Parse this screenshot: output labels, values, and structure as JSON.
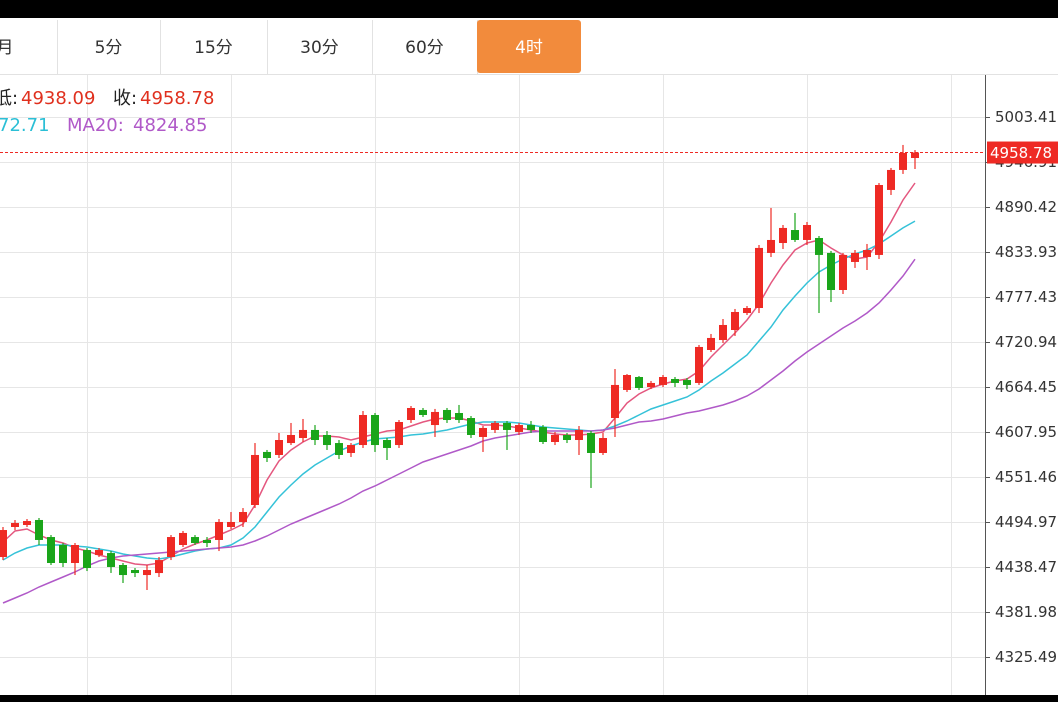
{
  "tabs": [
    "月",
    "5分",
    "15分",
    "30分",
    "60分",
    "4时"
  ],
  "active_tab": 5,
  "chart_data": {
    "type": "candlestick",
    "info": {
      "low_label": "低:",
      "close_label": "收:",
      "ma10_tail": "72.71",
      "ma20_label": "MA20:"
    },
    "up_color": "#ee2a24",
    "down_color": "#1aa51a",
    "ylim": [
      4277.8,
      5056.1
    ],
    "yticks": [
      4325.49,
      4381.98,
      4438.47,
      4494.97,
      4551.46,
      4607.95,
      4664.45,
      4720.94,
      4777.43,
      4833.93,
      4890.42,
      4946.91,
      5003.41
    ],
    "grid": true,
    "open": [
      4451.0,
      4488.7,
      4491.2,
      4497.5,
      4476.1,
      4466.1,
      4443.5,
      4459.8,
      4453.5,
      4456.0,
      4441.0,
      4434.7,
      4428.4,
      4430.9,
      4451.0,
      4466.1,
      4476.1,
      4472.4,
      4472.4,
      4488.7,
      4495.0,
      4516.3,
      4582.9,
      4579.1,
      4594.1,
      4600.4,
      4610.5,
      4604.2,
      4594.1,
      4581.6,
      4591.6,
      4629.3,
      4597.9,
      4591.6,
      4623.0,
      4635.6,
      4616.7,
      4635.6,
      4631.8,
      4625.5,
      4601.7,
      4610.5,
      4619.3,
      4608.0,
      4616.7,
      4614.2,
      4595.4,
      4604.2,
      4597.9,
      4606.7,
      4581.6,
      4625.5,
      4660.7,
      4677.0,
      4664.4,
      4667.0,
      4674.5,
      4673.2,
      4669.5,
      4710.9,
      4723.4,
      4736.0,
      4757.3,
      4763.6,
      4832.7,
      4845.2,
      4861.5,
      4849.0,
      4851.5,
      4832.7,
      4786.2,
      4821.4,
      4827.6,
      4830.2,
      4911.8,
      4936.9,
      4951.9
    ],
    "close": [
      4484.9,
      4493.7,
      4496.2,
      4472.4,
      4443.5,
      4443.5,
      4466.1,
      4437.2,
      4459.8,
      4438.5,
      4428.4,
      4430.9,
      4434.7,
      4447.2,
      4476.1,
      4481.2,
      4468.6,
      4468.6,
      4495.0,
      4495.0,
      4507.5,
      4579.1,
      4575.3,
      4597.9,
      4604.2,
      4610.5,
      4597.9,
      4591.6,
      4579.1,
      4591.6,
      4629.3,
      4591.6,
      4587.9,
      4620.5,
      4638.1,
      4629.3,
      4633.1,
      4623.0,
      4623.0,
      4604.2,
      4613.0,
      4619.3,
      4610.5,
      4616.7,
      4610.5,
      4595.4,
      4604.2,
      4597.9,
      4610.5,
      4581.6,
      4600.4,
      4667.0,
      4679.5,
      4663.2,
      4669.5,
      4677.0,
      4669.5,
      4667.0,
      4714.7,
      4726.0,
      4742.3,
      4758.6,
      4763.6,
      4839.0,
      4849.0,
      4864.1,
      4849.0,
      4867.8,
      4830.2,
      4786.2,
      4830.2,
      4832.7,
      4836.4,
      4918.0,
      4936.9,
      4958.2,
      4958.78
    ],
    "high": [
      4488.7,
      4497.5,
      4498.7,
      4500.0,
      4478.6,
      4468.6,
      4468.6,
      4462.3,
      4462.3,
      4458.5,
      4443.5,
      4437.2,
      4441.0,
      4451.0,
      4478.6,
      4483.7,
      4478.6,
      4476.1,
      4498.7,
      4507.5,
      4512.5,
      4594.1,
      4585.4,
      4606.7,
      4619.3,
      4624.3,
      4616.7,
      4609.2,
      4597.9,
      4594.1,
      4634.3,
      4631.8,
      4600.4,
      4623.0,
      4640.6,
      4638.1,
      4636.9,
      4638.1,
      4641.9,
      4628.0,
      4615.5,
      4621.8,
      4621.8,
      4619.3,
      4621.8,
      4616.7,
      4608.0,
      4606.7,
      4615.5,
      4609.2,
      4606.7,
      4687.0,
      4680.7,
      4678.2,
      4672.0,
      4679.5,
      4677.0,
      4675.7,
      4717.2,
      4731.0,
      4749.8,
      4762.4,
      4766.1,
      4842.7,
      4889.2,
      4867.8,
      4882.9,
      4871.6,
      4854.0,
      4835.2,
      4832.7,
      4836.4,
      4844.0,
      4920.5,
      4939.4,
      4968.3,
      4961.9
    ],
    "low": [
      4447.2,
      4484.9,
      4488.7,
      4466.1,
      4441.0,
      4438.5,
      4428.4,
      4433.4,
      4451.0,
      4431.0,
      4418.4,
      4425.9,
      4409.6,
      4425.9,
      4447.2,
      4463.6,
      4466.1,
      4463.6,
      4458.5,
      4486.2,
      4488.7,
      4512.5,
      4570.3,
      4575.3,
      4591.6,
      4595.4,
      4591.6,
      4585.4,
      4574.0,
      4576.6,
      4587.9,
      4582.9,
      4572.8,
      4587.9,
      4619.3,
      4626.8,
      4601.7,
      4619.3,
      4619.3,
      4600.4,
      4582.9,
      4606.7,
      4585.4,
      4604.2,
      4606.7,
      4592.9,
      4591.6,
      4594.1,
      4579.1,
      4537.7,
      4579.1,
      4601.7,
      4658.2,
      4660.7,
      4661.9,
      4664.4,
      4664.4,
      4661.9,
      4667.0,
      4708.4,
      4719.7,
      4728.5,
      4754.8,
      4757.3,
      4827.6,
      4837.7,
      4846.5,
      4842.7,
      4757.3,
      4771.1,
      4781.2,
      4813.9,
      4811.3,
      4825.1,
      4905.5,
      4931.9,
      4938.09
    ],
    "series": [
      {
        "color": "#e4577f",
        "values": [
          4469.9,
          4483.7,
          4486.2,
          4478.6,
          4472.4,
          4468.6,
          4462.3,
          4458.6,
          4453.5,
          4449.8,
          4446.0,
          4442.2,
          4441.0,
          4443.5,
          4452.3,
          4461.1,
          4467.3,
          4472.4,
          4478.6,
          4484.9,
          4492.5,
          4516.3,
          4547.7,
          4571.5,
          4585.4,
          4595.4,
          4602.9,
          4602.9,
          4601.7,
          4597.9,
          4601.7,
          4605.4,
          4609.2,
          4610.5,
          4615.5,
          4620.5,
          4624.3,
          4625.5,
          4625.5,
          4621.8,
          4616.7,
          4616.7,
          4615.5,
          4613.0,
          4610.5,
          4607.9,
          4605.4,
          4604.2,
          4604.2,
          4605.4,
          4607.9,
          4625.5,
          4644.4,
          4655.7,
          4663.2,
          4668.2,
          4672.0,
          4674.5,
          4684.5,
          4702.1,
          4717.2,
          4732.2,
          4748.6,
          4768.6,
          4795.0,
          4817.6,
          4836.4,
          4845.2,
          4849.0,
          4838.9,
          4830.2,
          4825.1,
          4827.6,
          4846.5,
          4871.6,
          4899.2,
          4920.5
        ]
      },
      {
        "color": "#35c2d8",
        "values": [
          4447.3,
          4456.0,
          4462.3,
          4466.1,
          4466.1,
          4466.1,
          4464.8,
          4463.6,
          4461.1,
          4458.6,
          4454.8,
          4452.3,
          4449.8,
          4448.5,
          4451.0,
          4454.8,
          4458.6,
          4461.1,
          4462.3,
          4466.1,
          4474.9,
          4488.7,
          4507.5,
          4526.3,
          4541.4,
          4555.2,
          4566.5,
          4575.3,
          4584.1,
          4590.4,
          4595.4,
          4599.2,
          4600.4,
          4601.7,
          4604.2,
          4605.4,
          4607.9,
          4610.5,
          4614.2,
          4618.0,
          4620.5,
          4620.5,
          4620.5,
          4619.2,
          4616.7,
          4614.2,
          4613.0,
          4611.7,
          4610.5,
          4609.2,
          4610.5,
          4615.5,
          4621.8,
          4629.3,
          4636.8,
          4641.8,
          4646.9,
          4651.9,
          4660.7,
          4672.0,
          4682.0,
          4693.3,
          4704.6,
          4722.2,
          4739.8,
          4761.1,
          4778.7,
          4795.0,
          4808.8,
          4817.6,
          4825.1,
          4831.4,
          4836.4,
          4844.0,
          4854.0,
          4864.1,
          4872.71
        ]
      },
      {
        "color": "#b059c8",
        "values": [
          4393.3,
          4399.6,
          4405.8,
          4413.4,
          4419.6,
          4425.9,
          4432.2,
          4439.7,
          4446.0,
          4449.8,
          4452.3,
          4453.5,
          4454.8,
          4456.0,
          4457.3,
          4458.6,
          4459.8,
          4461.1,
          4462.3,
          4463.6,
          4466.1,
          4471.1,
          4477.4,
          4484.9,
          4492.5,
          4498.7,
          4505.0,
          4511.3,
          4517.6,
          4525.1,
          4533.9,
          4540.2,
          4547.7,
          4555.2,
          4562.8,
          4570.3,
          4575.3,
          4580.3,
          4585.4,
          4590.4,
          4596.7,
          4600.4,
          4602.9,
          4605.4,
          4607.9,
          4609.2,
          4609.2,
          4609.2,
          4609.2,
          4609.2,
          4610.5,
          4613.0,
          4616.7,
          4620.5,
          4621.8,
          4624.3,
          4628.0,
          4631.8,
          4634.3,
          4638.1,
          4641.8,
          4646.9,
          4653.1,
          4661.9,
          4673.2,
          4684.5,
          4697.1,
          4708.4,
          4718.4,
          4728.5,
          4738.5,
          4747.3,
          4757.3,
          4769.9,
          4786.2,
          4803.8,
          4824.85
        ]
      }
    ]
  }
}
